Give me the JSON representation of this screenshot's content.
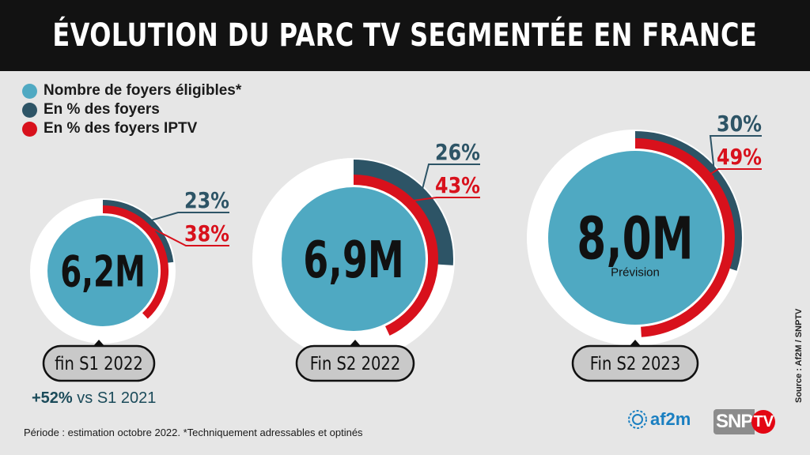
{
  "title": "ÉVOLUTION DU PARC TV SEGMENTÉE EN FRANCE",
  "legend": [
    {
      "label": "Nombre de foyers éligibles*",
      "color": "#4fa9c2"
    },
    {
      "label": "En % des foyers",
      "color": "#2d5466"
    },
    {
      "label": "En % des foyers IPTV",
      "color": "#d8111c"
    }
  ],
  "chart_data": {
    "type": "pie",
    "series_names": [
      "Nombre de foyers éligibles*",
      "En % des foyers",
      "En % des foyers IPTV"
    ],
    "items": [
      {
        "period": "fin S1 2022",
        "households_millions": 6.2,
        "value_label": "6,2M",
        "pct_households": 23,
        "pct_households_label": "23%",
        "pct_iptv": 38,
        "pct_iptv_label": "38%",
        "note": ""
      },
      {
        "period": "Fin S2 2022",
        "households_millions": 6.9,
        "value_label": "6,9M",
        "pct_households": 26,
        "pct_households_label": "26%",
        "pct_iptv": 43,
        "pct_iptv_label": "43%",
        "note": ""
      },
      {
        "period": "Fin S2 2023",
        "households_millions": 8.0,
        "value_label": "8,0M",
        "pct_households": 30,
        "pct_households_label": "30%",
        "pct_iptv": 49,
        "pct_iptv_label": "49%",
        "note": "Prévision"
      }
    ]
  },
  "comparison": {
    "value": "+52%",
    "text": " vs S1 2021"
  },
  "footnote": "Période : estimation octobre 2022. *Techniquement adressables et optinés",
  "source": "Source : Af2M / SNPTV",
  "logos": {
    "af2m": "af2m",
    "snp": "SNP",
    "tv": "TV"
  },
  "colors": {
    "cyan": "#4fa9c2",
    "teal": "#2d5466",
    "red": "#d8111c",
    "ring": "#ffffff",
    "pill": "#c9c9c9"
  }
}
